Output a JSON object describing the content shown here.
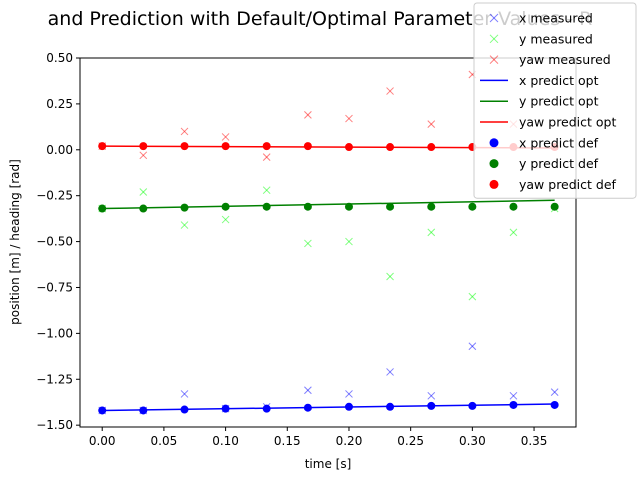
{
  "chart_data": {
    "type": "scatter",
    "title": "and Prediction with Default/Optimal Parameter Values - R",
    "xlabel": "time [s]",
    "ylabel": "position [m] / heading [rad]",
    "xlim": [
      -0.018,
      0.384
    ],
    "ylim": [
      -1.51,
      0.5
    ],
    "xticks": [
      0.0,
      0.05,
      0.1,
      0.15,
      0.2,
      0.25,
      0.3,
      0.35
    ],
    "xtick_labels": [
      "0.00",
      "0.05",
      "0.10",
      "0.15",
      "0.20",
      "0.25",
      "0.30",
      "0.35"
    ],
    "yticks": [
      -1.5,
      -1.25,
      -1.0,
      -0.75,
      -0.5,
      -0.25,
      0.0,
      0.25,
      0.5
    ],
    "ytick_labels": [
      "−1.50",
      "−1.25",
      "−1.00",
      "−0.75",
      "−0.50",
      "−0.25",
      "0.00",
      "0.25",
      "0.50"
    ],
    "grid": false,
    "legend_position": "top-right",
    "series": [
      {
        "name": "x measured",
        "kind": "cross",
        "color": "#0000ff",
        "alpha": 0.5,
        "x": [
          0.0,
          0.0333,
          0.0667,
          0.1,
          0.1333,
          0.1667,
          0.2,
          0.2333,
          0.2667,
          0.3,
          0.3333,
          0.3667
        ],
        "y": [
          -1.42,
          -1.42,
          -1.33,
          -1.41,
          -1.4,
          -1.31,
          -1.33,
          -1.21,
          -1.34,
          -1.07,
          -1.34,
          -1.32
        ]
      },
      {
        "name": "y measured",
        "kind": "cross",
        "color": "#00ff00",
        "alpha": 0.5,
        "x": [
          0.0,
          0.0333,
          0.0667,
          0.1,
          0.1333,
          0.1667,
          0.2,
          0.2333,
          0.2667,
          0.3,
          0.3333,
          0.3667
        ],
        "y": [
          -0.32,
          -0.23,
          -0.41,
          -0.38,
          -0.22,
          -0.51,
          -0.5,
          -0.69,
          -0.45,
          -0.8,
          -0.45,
          -0.32
        ]
      },
      {
        "name": "yaw measured",
        "kind": "cross",
        "color": "#ff0000",
        "alpha": 0.5,
        "x": [
          0.0,
          0.0333,
          0.0667,
          0.1,
          0.1333,
          0.1667,
          0.2,
          0.2333,
          0.2667,
          0.3,
          0.3333,
          0.3667
        ],
        "y": [
          0.02,
          -0.03,
          0.1,
          0.07,
          -0.04,
          0.19,
          0.17,
          0.32,
          0.14,
          0.41,
          0.14,
          0.02
        ]
      },
      {
        "name": "x predict opt",
        "kind": "line",
        "color": "#0000ff",
        "x": [
          0.0,
          0.3667
        ],
        "y": [
          -1.42,
          -1.385
        ]
      },
      {
        "name": "y predict opt",
        "kind": "line",
        "color": "#008000",
        "x": [
          0.0,
          0.3667
        ],
        "y": [
          -0.32,
          -0.275
        ]
      },
      {
        "name": "yaw predict opt",
        "kind": "line",
        "color": "#ff0000",
        "x": [
          0.0,
          0.3667
        ],
        "y": [
          0.02,
          0.01
        ]
      },
      {
        "name": "x predict def",
        "kind": "dot",
        "color": "#0000ff",
        "x": [
          0.0,
          0.0333,
          0.0667,
          0.1,
          0.1333,
          0.1667,
          0.2,
          0.2333,
          0.2667,
          0.3,
          0.3333,
          0.3667
        ],
        "y": [
          -1.42,
          -1.42,
          -1.415,
          -1.41,
          -1.41,
          -1.405,
          -1.4,
          -1.4,
          -1.395,
          -1.395,
          -1.39,
          -1.39
        ]
      },
      {
        "name": "y predict def",
        "kind": "dot",
        "color": "#008000",
        "x": [
          0.0,
          0.0333,
          0.0667,
          0.1,
          0.1333,
          0.1667,
          0.2,
          0.2333,
          0.2667,
          0.3,
          0.3333,
          0.3667
        ],
        "y": [
          -0.32,
          -0.32,
          -0.315,
          -0.31,
          -0.31,
          -0.31,
          -0.31,
          -0.31,
          -0.31,
          -0.31,
          -0.31,
          -0.31
        ]
      },
      {
        "name": "yaw predict def",
        "kind": "dot",
        "color": "#ff0000",
        "x": [
          0.0,
          0.0333,
          0.0667,
          0.1,
          0.1333,
          0.1667,
          0.2,
          0.2333,
          0.2667,
          0.3,
          0.3333,
          0.3667
        ],
        "y": [
          0.02,
          0.02,
          0.02,
          0.02,
          0.02,
          0.02,
          0.015,
          0.015,
          0.015,
          0.015,
          0.015,
          0.015
        ]
      }
    ]
  }
}
